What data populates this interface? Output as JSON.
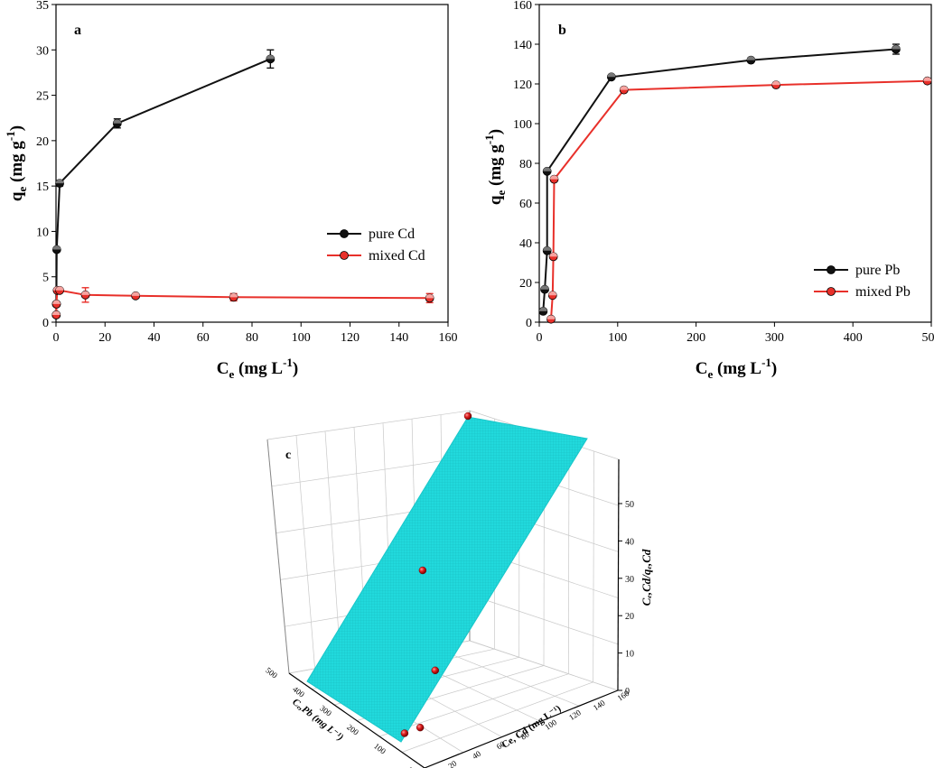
{
  "colors": {
    "black_series": "#111111",
    "red_series": "#e8302a",
    "surface": "#21d9dc",
    "axis": "#000000",
    "grid": "#c8c8c8"
  },
  "chart_data": [
    {
      "panel_label": "a",
      "type": "line",
      "xlabel": {
        "main": "C",
        "sub": "e",
        "unit": " (mg L",
        "sup": "-1",
        "close": ")"
      },
      "ylabel": {
        "main": "q",
        "sub": "e",
        "unit": " (mg g",
        "sup": "-1",
        "close": ")"
      },
      "xlim": [
        0,
        160
      ],
      "ylim": [
        0,
        35
      ],
      "xticks": [
        "0",
        "20",
        "40",
        "60",
        "80",
        "100",
        "120",
        "140",
        "160"
      ],
      "yticks": [
        "0",
        "5",
        "10",
        "15",
        "20",
        "25",
        "30",
        "35"
      ],
      "legend_position": "center-right",
      "series": [
        {
          "name": "pure Cd",
          "color": "#111111",
          "x": [
            0.1,
            0.15,
            0.3,
            1.5,
            25,
            87.5
          ],
          "y": [
            0.8,
            2.0,
            8.0,
            15.3,
            21.9,
            29.0
          ],
          "err": [
            0,
            0,
            0,
            0.3,
            0.5,
            1.0
          ]
        },
        {
          "name": "mixed Cd",
          "color": "#e8302a",
          "x": [
            0.1,
            0.2,
            0.5,
            1.5,
            12,
            32.5,
            72.5,
            152.5
          ],
          "y": [
            0.8,
            2.0,
            3.5,
            3.5,
            3.0,
            2.9,
            2.75,
            2.65
          ],
          "err": [
            0,
            0,
            0,
            0.2,
            0.8,
            0.2,
            0.4,
            0.5
          ]
        }
      ]
    },
    {
      "panel_label": "b",
      "type": "line",
      "xlabel": {
        "main": "C",
        "sub": "e",
        "unit": " (mg L",
        "sup": "-1",
        "close": ")"
      },
      "ylabel": {
        "main": "q",
        "sub": "e",
        "unit": " (mg g",
        "sup": "-1",
        "close": ")"
      },
      "xlim": [
        0,
        500
      ],
      "ylim": [
        0,
        160
      ],
      "xticks": [
        "0",
        "100",
        "200",
        "300",
        "400",
        "500"
      ],
      "yticks": [
        "0",
        "20",
        "40",
        "60",
        "80",
        "100",
        "120",
        "140",
        "160"
      ],
      "legend_position": "bottom-right",
      "series": [
        {
          "name": "pure Pb",
          "color": "#111111",
          "x": [
            5,
            7,
            10,
            10,
            92,
            270,
            455
          ],
          "y": [
            5.5,
            16.5,
            36,
            76,
            123.5,
            132,
            137.5
          ],
          "err": [
            0,
            0,
            0,
            0,
            0.5,
            0.5,
            2.5
          ]
        },
        {
          "name": "mixed Pb",
          "color": "#e8302a",
          "x": [
            15,
            17,
            18,
            19,
            108,
            302,
            495
          ],
          "y": [
            1.5,
            13.5,
            33,
            72,
            117,
            119.5,
            121.5
          ],
          "err": [
            0,
            0,
            0,
            0,
            0.5,
            0.5,
            0.5
          ]
        }
      ]
    },
    {
      "panel_label": "c",
      "type": "scatter",
      "view": "3d-surface",
      "zlabel": "Cₑ,Cd/qₑ,Cd",
      "xlabel": "Ce, Cd (mg L⁻¹)",
      "ylabel": "Cₑ,Pb (mg L⁻¹)",
      "zticks": [
        "0",
        "10",
        "20",
        "30",
        "40",
        "50"
      ],
      "xticks": [
        "0",
        "20",
        "40",
        "60",
        "80",
        "100",
        "120",
        "140",
        "160"
      ],
      "yticks": [
        "0",
        "100",
        "200",
        "300",
        "400",
        "500"
      ],
      "zlim": [
        0,
        57
      ],
      "points": [
        {
          "z": 1.5
        },
        {
          "z": 2.5
        },
        {
          "z": 12.5
        },
        {
          "z": 30
        },
        {
          "z": 57
        }
      ]
    }
  ]
}
